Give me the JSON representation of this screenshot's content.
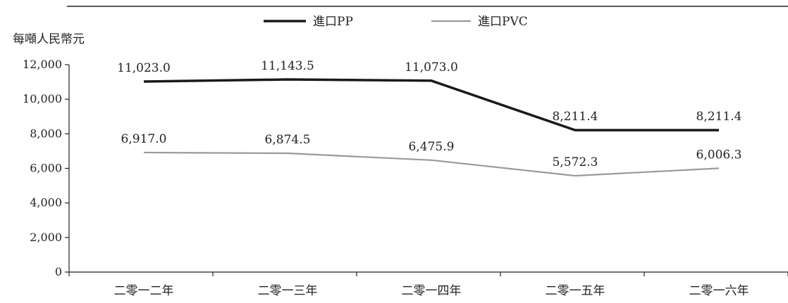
{
  "chart_data": {
    "type": "line",
    "ylabel": "每噸人民幣元",
    "ylim": [
      0,
      12000
    ],
    "yticks": [
      "0",
      "2,000",
      "4,000",
      "6,000",
      "8,000",
      "10,000",
      "12,000"
    ],
    "ytick_values": [
      0,
      2000,
      4000,
      6000,
      8000,
      10000,
      12000
    ],
    "categories": [
      "二零一二年",
      "二零一三年",
      "二零一四年",
      "二零一五年",
      "二零一六年"
    ],
    "legend_position": "top-center",
    "grid": false,
    "series": [
      {
        "name": "進口PP",
        "color": "#1a1a1a",
        "values": [
          11023.0,
          11143.5,
          11073.0,
          8211.4,
          8211.4
        ],
        "labels": [
          "11,023.0",
          "11,143.5",
          "11,073.0",
          "8,211.4",
          "8,211.4"
        ]
      },
      {
        "name": "進口PVC",
        "color": "#9a9a9a",
        "values": [
          6917.0,
          6874.5,
          6475.9,
          5572.3,
          6006.3
        ],
        "labels": [
          "6,917.0",
          "6,874.5",
          "6,475.9",
          "5,572.3",
          "6,006.3"
        ]
      }
    ]
  }
}
